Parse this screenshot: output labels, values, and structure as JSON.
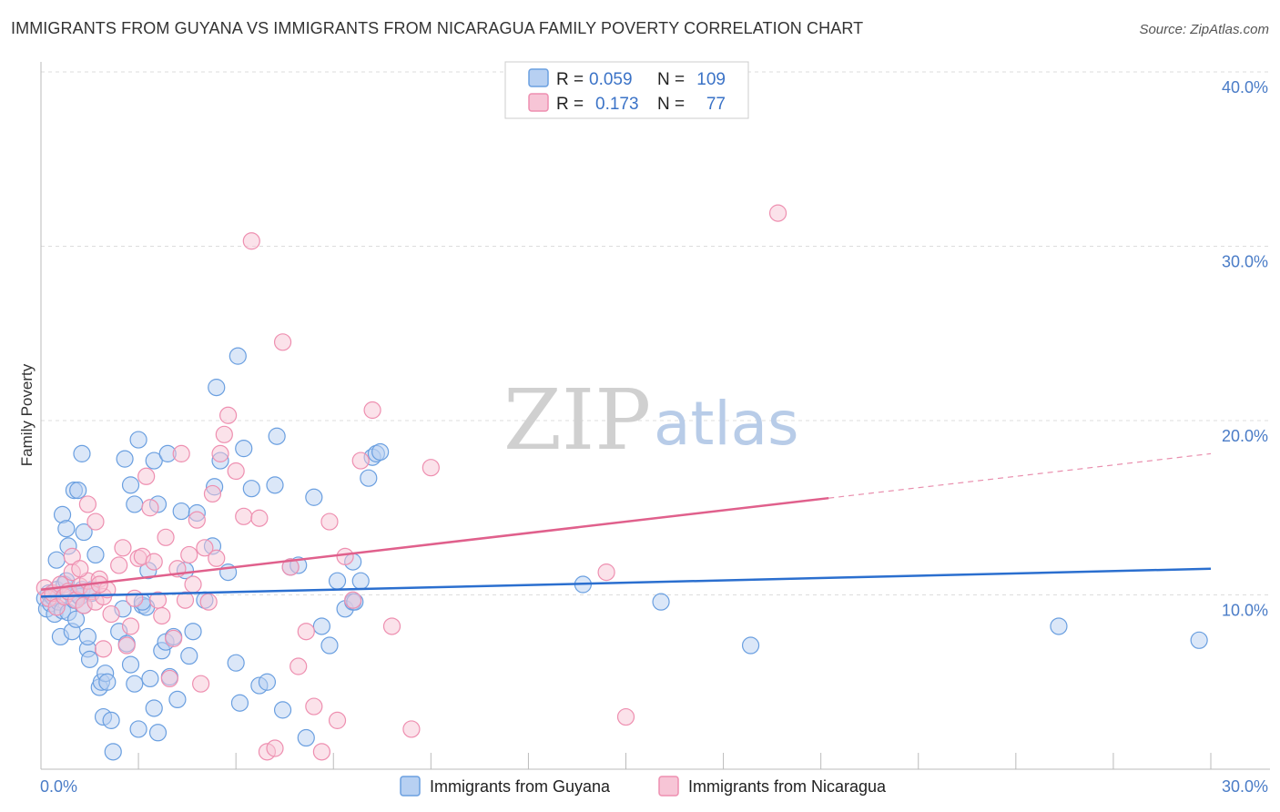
{
  "title": "IMMIGRANTS FROM GUYANA VS IMMIGRANTS FROM NICARAGUA FAMILY POVERTY CORRELATION CHART",
  "source": "Source: ZipAtlas.com",
  "watermark": {
    "zip": "ZIP",
    "atlas": "atlas"
  },
  "colors": {
    "guyana": "#6a9fe0",
    "guyana_fill": "#b7d0f2",
    "guyana_line": "#2b6fcf",
    "nicaragua": "#ee8fb0",
    "nicaragua_fill": "#f7c5d6",
    "nicaragua_line": "#e0608c",
    "tick": "#4a7cc7",
    "grid": "#dddddd"
  },
  "legend": {
    "rows": [
      {
        "r_label": "R =",
        "r_value": "0.059",
        "n_label": "N =",
        "n_value": "109"
      },
      {
        "r_label": "R =",
        "r_value": "0.173",
        "n_label": "N =",
        "n_value": "77"
      }
    ]
  },
  "bottom_legend": [
    "Immigrants from Guyana",
    "Immigrants from Nicaragua"
  ],
  "chart_data": {
    "type": "scatter",
    "title": "IMMIGRANTS FROM GUYANA VS IMMIGRANTS FROM NICARAGUA FAMILY POVERTY CORRELATION CHART",
    "xlabel": "",
    "ylabel": "Family Poverty",
    "xlim": [
      0,
      30
    ],
    "ylim": [
      0,
      40
    ],
    "x_ticks": [
      "0.0%",
      "30.0%"
    ],
    "y_ticks": [
      "10.0%",
      "20.0%",
      "30.0%",
      "40.0%"
    ],
    "y_tick_values": [
      10,
      20,
      30,
      40
    ],
    "grid": true,
    "series": [
      {
        "name": "Immigrants from Guyana",
        "trend": {
          "x": [
            0,
            30
          ],
          "y": [
            9.9,
            11.5
          ],
          "solid_to": 30
        },
        "points": [
          [
            0.1,
            9.8
          ],
          [
            0.15,
            9.2
          ],
          [
            0.2,
            10.1
          ],
          [
            0.25,
            9.5
          ],
          [
            0.3,
            9.9
          ],
          [
            0.35,
            8.9
          ],
          [
            0.4,
            10.3
          ],
          [
            0.45,
            9.6
          ],
          [
            0.5,
            7.6
          ],
          [
            0.55,
            9.1
          ],
          [
            0.6,
            10.6
          ],
          [
            0.65,
            10.8
          ],
          [
            0.7,
            9.0
          ],
          [
            0.75,
            10.1
          ],
          [
            0.8,
            7.9
          ],
          [
            0.85,
            9.7
          ],
          [
            0.9,
            8.6
          ],
          [
            0.95,
            10.0
          ],
          [
            1.0,
            9.9
          ],
          [
            1.05,
            10.3
          ],
          [
            1.1,
            9.4
          ],
          [
            1.2,
            6.9
          ],
          [
            1.25,
            6.3
          ],
          [
            1.3,
            10.1
          ],
          [
            1.4,
            12.3
          ],
          [
            1.5,
            4.7
          ],
          [
            1.55,
            5.0
          ],
          [
            1.6,
            3.0
          ],
          [
            1.65,
            5.5
          ],
          [
            1.7,
            5.0
          ],
          [
            1.8,
            2.8
          ],
          [
            1.85,
            1.0
          ],
          [
            2.0,
            7.9
          ],
          [
            2.1,
            9.2
          ],
          [
            2.2,
            7.2
          ],
          [
            2.3,
            6.0
          ],
          [
            2.4,
            4.9
          ],
          [
            2.5,
            2.3
          ],
          [
            2.6,
            9.4
          ],
          [
            2.7,
            9.3
          ],
          [
            2.8,
            5.2
          ],
          [
            2.9,
            3.5
          ],
          [
            3.0,
            2.1
          ],
          [
            3.1,
            6.8
          ],
          [
            3.2,
            7.3
          ],
          [
            3.3,
            5.3
          ],
          [
            3.4,
            7.6
          ],
          [
            3.5,
            4.0
          ],
          [
            3.6,
            14.8
          ],
          [
            3.7,
            11.4
          ],
          [
            3.8,
            6.5
          ],
          [
            3.9,
            7.9
          ],
          [
            4.0,
            14.7
          ],
          [
            4.2,
            9.7
          ],
          [
            4.4,
            12.8
          ],
          [
            4.5,
            21.9
          ],
          [
            4.6,
            17.7
          ],
          [
            4.8,
            11.3
          ],
          [
            5.0,
            6.1
          ],
          [
            5.1,
            3.8
          ],
          [
            5.2,
            18.4
          ],
          [
            5.4,
            16.1
          ],
          [
            5.6,
            4.8
          ],
          [
            5.8,
            5.0
          ],
          [
            6.0,
            16.3
          ],
          [
            6.2,
            3.4
          ],
          [
            6.4,
            11.6
          ],
          [
            6.6,
            11.7
          ],
          [
            6.8,
            1.8
          ],
          [
            7.0,
            15.6
          ],
          [
            7.2,
            8.2
          ],
          [
            7.4,
            7.1
          ],
          [
            7.6,
            10.8
          ],
          [
            7.8,
            9.2
          ],
          [
            8.0,
            9.6
          ],
          [
            8.2,
            10.8
          ],
          [
            8.4,
            16.7
          ],
          [
            8.5,
            17.9
          ],
          [
            8.6,
            18.1
          ],
          [
            8.7,
            18.2
          ],
          [
            0.4,
            12.0
          ],
          [
            0.55,
            14.6
          ],
          [
            0.65,
            13.8
          ],
          [
            0.7,
            12.8
          ],
          [
            0.85,
            16.0
          ],
          [
            0.95,
            16.0
          ],
          [
            1.05,
            18.1
          ],
          [
            1.1,
            13.6
          ],
          [
            1.2,
            7.6
          ],
          [
            1.3,
            10.3
          ],
          [
            2.15,
            17.8
          ],
          [
            2.3,
            16.3
          ],
          [
            2.4,
            15.2
          ],
          [
            2.5,
            18.9
          ],
          [
            2.6,
            9.6
          ],
          [
            2.75,
            11.4
          ],
          [
            2.9,
            17.7
          ],
          [
            3.0,
            15.2
          ],
          [
            3.25,
            18.1
          ],
          [
            4.45,
            16.2
          ],
          [
            5.05,
            23.7
          ],
          [
            6.05,
            19.1
          ],
          [
            8.0,
            11.9
          ],
          [
            8.05,
            9.6
          ],
          [
            13.9,
            10.6
          ],
          [
            15.9,
            9.6
          ],
          [
            18.2,
            7.1
          ],
          [
            26.1,
            8.2
          ],
          [
            29.7,
            7.4
          ]
        ]
      },
      {
        "name": "Immigrants from Nicaragua",
        "trend": {
          "x": [
            0,
            30
          ],
          "y": [
            10.3,
            18.1
          ],
          "solid_to": 20.2
        },
        "points": [
          [
            0.1,
            10.4
          ],
          [
            0.2,
            9.8
          ],
          [
            0.3,
            10.1
          ],
          [
            0.4,
            9.3
          ],
          [
            0.5,
            10.6
          ],
          [
            0.6,
            9.9
          ],
          [
            0.7,
            10.2
          ],
          [
            0.8,
            11.3
          ],
          [
            0.9,
            9.7
          ],
          [
            1.0,
            10.5
          ],
          [
            1.1,
            9.4
          ],
          [
            1.2,
            10.8
          ],
          [
            1.3,
            10.2
          ],
          [
            1.4,
            9.6
          ],
          [
            1.5,
            10.9
          ],
          [
            1.6,
            9.9
          ],
          [
            1.7,
            10.3
          ],
          [
            0.8,
            12.2
          ],
          [
            1.0,
            11.5
          ],
          [
            1.2,
            15.2
          ],
          [
            1.4,
            14.2
          ],
          [
            1.5,
            10.6
          ],
          [
            1.6,
            6.9
          ],
          [
            1.8,
            8.9
          ],
          [
            2.0,
            11.7
          ],
          [
            2.1,
            12.7
          ],
          [
            2.2,
            7.1
          ],
          [
            2.3,
            8.2
          ],
          [
            2.4,
            9.8
          ],
          [
            2.5,
            12.1
          ],
          [
            2.6,
            12.2
          ],
          [
            2.7,
            16.8
          ],
          [
            2.8,
            15.0
          ],
          [
            2.9,
            11.9
          ],
          [
            3.0,
            9.7
          ],
          [
            3.1,
            8.8
          ],
          [
            3.2,
            13.3
          ],
          [
            3.3,
            5.2
          ],
          [
            3.4,
            7.5
          ],
          [
            3.5,
            11.5
          ],
          [
            3.6,
            18.1
          ],
          [
            3.7,
            9.7
          ],
          [
            3.8,
            12.3
          ],
          [
            3.9,
            10.6
          ],
          [
            4.0,
            14.3
          ],
          [
            4.1,
            4.9
          ],
          [
            4.2,
            12.7
          ],
          [
            4.3,
            9.6
          ],
          [
            4.4,
            15.8
          ],
          [
            4.5,
            12.1
          ],
          [
            4.6,
            18.1
          ],
          [
            4.7,
            19.2
          ],
          [
            4.8,
            20.3
          ],
          [
            5.0,
            17.1
          ],
          [
            5.2,
            14.5
          ],
          [
            5.4,
            30.3
          ],
          [
            5.6,
            14.4
          ],
          [
            5.8,
            1.0
          ],
          [
            6.0,
            1.2
          ],
          [
            6.2,
            24.5
          ],
          [
            6.4,
            11.6
          ],
          [
            6.6,
            5.9
          ],
          [
            6.8,
            7.9
          ],
          [
            7.0,
            3.6
          ],
          [
            7.2,
            1.0
          ],
          [
            7.4,
            14.2
          ],
          [
            7.6,
            2.8
          ],
          [
            7.8,
            12.2
          ],
          [
            8.0,
            9.7
          ],
          [
            8.2,
            17.7
          ],
          [
            8.5,
            20.6
          ],
          [
            9.0,
            8.2
          ],
          [
            9.5,
            2.3
          ],
          [
            10.0,
            17.3
          ],
          [
            14.5,
            11.3
          ],
          [
            15.0,
            3.0
          ],
          [
            18.9,
            31.9
          ]
        ]
      }
    ]
  }
}
